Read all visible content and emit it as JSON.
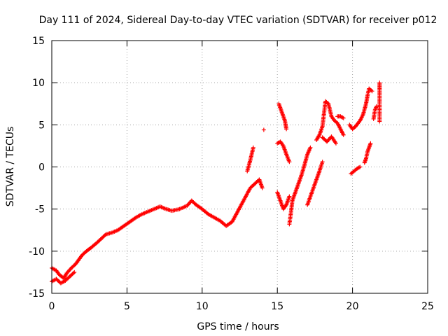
{
  "chart_data": {
    "type": "scatter",
    "title": "Day 111 of 2024, Sidereal Day-to-day VTEC variation (SDTVAR) for receiver p012",
    "xlabel": "GPS time / hours",
    "ylabel": "SDTVAR / TECUs",
    "xlim": [
      0,
      25
    ],
    "ylim": [
      -15,
      15
    ],
    "xticks": [
      0,
      5,
      10,
      15,
      20,
      25
    ],
    "yticks": [
      -15,
      -10,
      -5,
      0,
      5,
      10,
      15
    ],
    "grid": true,
    "marker": "+",
    "colors": {
      "series": "#ff0000"
    },
    "series": [
      {
        "segments": [
          [
            [
              0.0,
              -12.0
            ],
            [
              0.3,
              -12.3
            ],
            [
              0.5,
              -12.8
            ],
            [
              0.8,
              -13.2
            ],
            [
              1.0,
              -12.6
            ],
            [
              1.3,
              -12.0
            ],
            [
              1.6,
              -11.5
            ],
            [
              2.0,
              -10.5
            ],
            [
              2.3,
              -10.0
            ],
            [
              2.6,
              -9.6
            ],
            [
              3.0,
              -9.0
            ],
            [
              3.3,
              -8.5
            ],
            [
              3.6,
              -8.0
            ],
            [
              4.0,
              -7.8
            ],
            [
              4.4,
              -7.5
            ],
            [
              4.8,
              -7.0
            ],
            [
              5.2,
              -6.5
            ],
            [
              5.6,
              -6.0
            ],
            [
              6.0,
              -5.6
            ],
            [
              6.4,
              -5.3
            ],
            [
              6.8,
              -5.0
            ],
            [
              7.2,
              -4.7
            ],
            [
              7.6,
              -5.0
            ],
            [
              8.0,
              -5.2
            ],
            [
              8.5,
              -5.0
            ],
            [
              9.0,
              -4.6
            ],
            [
              9.3,
              -4.0
            ],
            [
              9.6,
              -4.5
            ],
            [
              10.0,
              -5.0
            ],
            [
              10.4,
              -5.6
            ],
            [
              10.8,
              -6.0
            ],
            [
              11.2,
              -6.4
            ],
            [
              11.6,
              -7.0
            ],
            [
              12.0,
              -6.5
            ],
            [
              12.3,
              -5.5
            ],
            [
              12.6,
              -4.5
            ],
            [
              12.9,
              -3.5
            ],
            [
              13.2,
              -2.5
            ],
            [
              13.5,
              -2.0
            ],
            [
              13.8,
              -1.5
            ],
            [
              14.0,
              -2.5
            ]
          ],
          [
            [
              0.0,
              -13.6
            ],
            [
              0.3,
              -13.3
            ],
            [
              0.6,
              -13.8
            ],
            [
              0.9,
              -13.5
            ],
            [
              1.2,
              -13.0
            ],
            [
              1.5,
              -12.5
            ]
          ],
          [
            [
              13.0,
              -0.5
            ],
            [
              13.2,
              0.8
            ],
            [
              13.4,
              2.3
            ]
          ],
          [
            [
              14.1,
              4.4
            ]
          ],
          [
            [
              15.0,
              2.8
            ],
            [
              15.2,
              3.0
            ],
            [
              15.4,
              2.5
            ],
            [
              15.6,
              1.5
            ],
            [
              15.8,
              0.6
            ]
          ],
          [
            [
              15.0,
              -3.0
            ],
            [
              15.2,
              -4.0
            ],
            [
              15.4,
              -5.0
            ],
            [
              15.6,
              -4.5
            ],
            [
              15.8,
              -3.5
            ]
          ],
          [
            [
              15.1,
              7.5
            ],
            [
              15.3,
              6.5
            ],
            [
              15.5,
              5.5
            ],
            [
              15.6,
              4.5
            ]
          ],
          [
            [
              15.8,
              -6.8
            ],
            [
              15.9,
              -5.5
            ],
            [
              16.0,
              -4.0
            ],
            [
              16.2,
              -3.0
            ],
            [
              16.4,
              -2.0
            ],
            [
              16.6,
              -1.0
            ],
            [
              16.8,
              0.2
            ],
            [
              17.0,
              1.5
            ],
            [
              17.2,
              2.3
            ]
          ],
          [
            [
              17.0,
              -4.5
            ],
            [
              17.3,
              -3.0
            ],
            [
              17.6,
              -1.5
            ],
            [
              17.8,
              -0.5
            ],
            [
              18.0,
              0.6
            ]
          ],
          [
            [
              17.6,
              3.2
            ],
            [
              17.8,
              3.8
            ],
            [
              18.0,
              4.8
            ],
            [
              18.2,
              7.8
            ],
            [
              18.4,
              7.5
            ],
            [
              18.6,
              6.0
            ],
            [
              18.8,
              5.5
            ],
            [
              19.0,
              5.2
            ],
            [
              19.2,
              4.5
            ],
            [
              19.4,
              3.8
            ]
          ],
          [
            [
              18.0,
              3.5
            ],
            [
              18.3,
              3.0
            ],
            [
              18.6,
              3.6
            ],
            [
              18.9,
              2.8
            ]
          ],
          [
            [
              19.0,
              6.0
            ],
            [
              19.2,
              6.0
            ],
            [
              19.4,
              5.8
            ]
          ],
          [
            [
              19.8,
              5.0
            ],
            [
              20.0,
              4.5
            ],
            [
              20.2,
              4.8
            ],
            [
              20.5,
              5.5
            ],
            [
              20.7,
              6.2
            ],
            [
              20.9,
              7.5
            ],
            [
              21.0,
              8.5
            ],
            [
              21.1,
              9.3
            ],
            [
              21.3,
              9.0
            ]
          ],
          [
            [
              19.9,
              -0.8
            ],
            [
              20.1,
              -0.5
            ],
            [
              20.3,
              -0.2
            ],
            [
              20.5,
              0.0
            ]
          ],
          [
            [
              20.8,
              0.5
            ],
            [
              20.9,
              1.0
            ],
            [
              21.0,
              1.8
            ],
            [
              21.1,
              2.3
            ],
            [
              21.2,
              2.8
            ]
          ],
          [
            [
              21.4,
              5.7
            ],
            [
              21.5,
              6.8
            ],
            [
              21.6,
              7.2
            ]
          ],
          [
            [
              21.8,
              10.0
            ],
            [
              21.8,
              9.3
            ],
            [
              21.8,
              8.4
            ],
            [
              21.8,
              5.4
            ]
          ]
        ]
      }
    ]
  }
}
